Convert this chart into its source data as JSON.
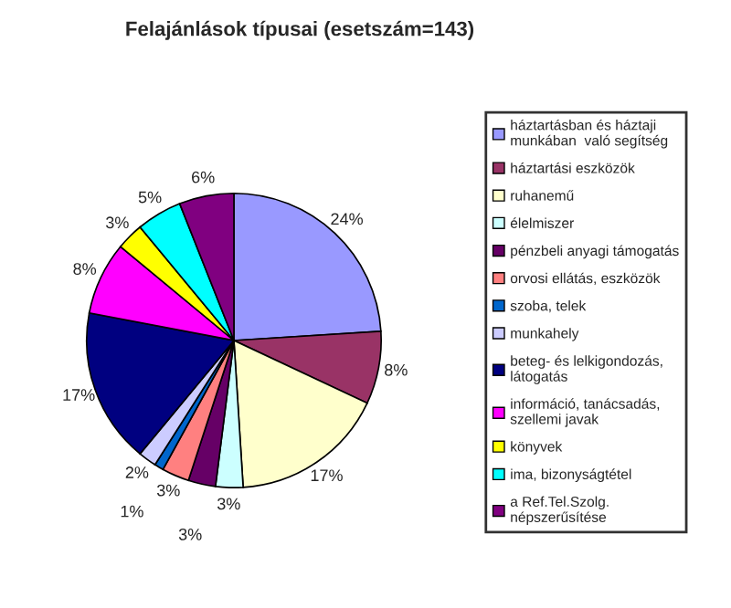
{
  "chart_data": {
    "type": "pie",
    "title": "Felajánlások típusai (esetszám=143)",
    "categories": [
      "háztartásban és háztaji munkában  való segítség",
      "háztartási eszközök",
      "ruhanemű",
      "élelmiszer",
      "pénzbeli anyagi támogatás",
      "orvosi ellátás, eszközök",
      "szoba, telek",
      "munkahely",
      "beteg- és lelkigondozás, látogatás",
      "információ, tanácsadás, szellemi javak",
      "könyvek",
      "ima, bizonyságtétel",
      "a Ref.Tel.Szolg. népszerűsítése"
    ],
    "values": [
      24,
      8,
      17,
      3,
      3,
      3,
      1,
      2,
      17,
      8,
      3,
      5,
      6
    ],
    "colors": [
      "#9999ff",
      "#993366",
      "#ffffcc",
      "#ccffff",
      "#660066",
      "#ff8080",
      "#0066cc",
      "#ccccff",
      "#000080",
      "#ff00ff",
      "#ffff00",
      "#00ffff",
      "#800080"
    ],
    "value_labels": [
      "24%",
      "8%",
      "17%",
      "3%",
      "3%",
      "3%",
      "1%",
      "2%",
      "17%",
      "8%",
      "3%",
      "5%",
      "6%"
    ],
    "legend": "right"
  }
}
